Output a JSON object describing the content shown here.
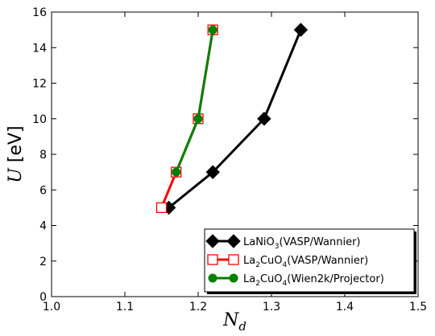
{
  "chart_data": {
    "type": "line",
    "xlabel": "N_d",
    "ylabel_symbol": "U",
    "ylabel_unit": "[eV]",
    "xlim": [
      1.0,
      1.5
    ],
    "ylim": [
      0,
      16
    ],
    "x_ticks": [
      "1.0",
      "1.1",
      "1.2",
      "1.3",
      "1.4",
      "1.5"
    ],
    "y_ticks": [
      "0",
      "2",
      "4",
      "6",
      "8",
      "10",
      "12",
      "14",
      "16"
    ],
    "grid": false,
    "legend_position": "bottom-right",
    "series": [
      {
        "name": "LaNiO3(VASP/Wannier)",
        "legend_parts": {
          "base": "LaNiO",
          "sub": "3",
          "rest": "(VASP/Wannier)"
        },
        "color": "#000000",
        "marker": "diamond",
        "x": [
          1.16,
          1.22,
          1.29,
          1.34
        ],
        "y": [
          5,
          7,
          10,
          15
        ]
      },
      {
        "name": "La2CuO4(VASP/Wannier)",
        "legend_parts": {
          "base": "La",
          "sub1": "2",
          "mid": "CuO",
          "sub2": "4",
          "rest": "(VASP/Wannier)"
        },
        "color": "#ff0000",
        "marker": "square-open",
        "x": [
          1.15,
          1.17,
          1.2,
          1.22
        ],
        "y": [
          5,
          7,
          10,
          15
        ]
      },
      {
        "name": "La2CuO4(Wien2k/Projector)",
        "legend_parts": {
          "base": "La",
          "sub1": "2",
          "mid": "CuO",
          "sub2": "4",
          "rest": "(Wien2k/Projector)"
        },
        "color": "#008000",
        "marker": "circle",
        "x": [
          1.17,
          1.2,
          1.22
        ],
        "y": [
          7,
          10,
          15
        ]
      }
    ]
  }
}
